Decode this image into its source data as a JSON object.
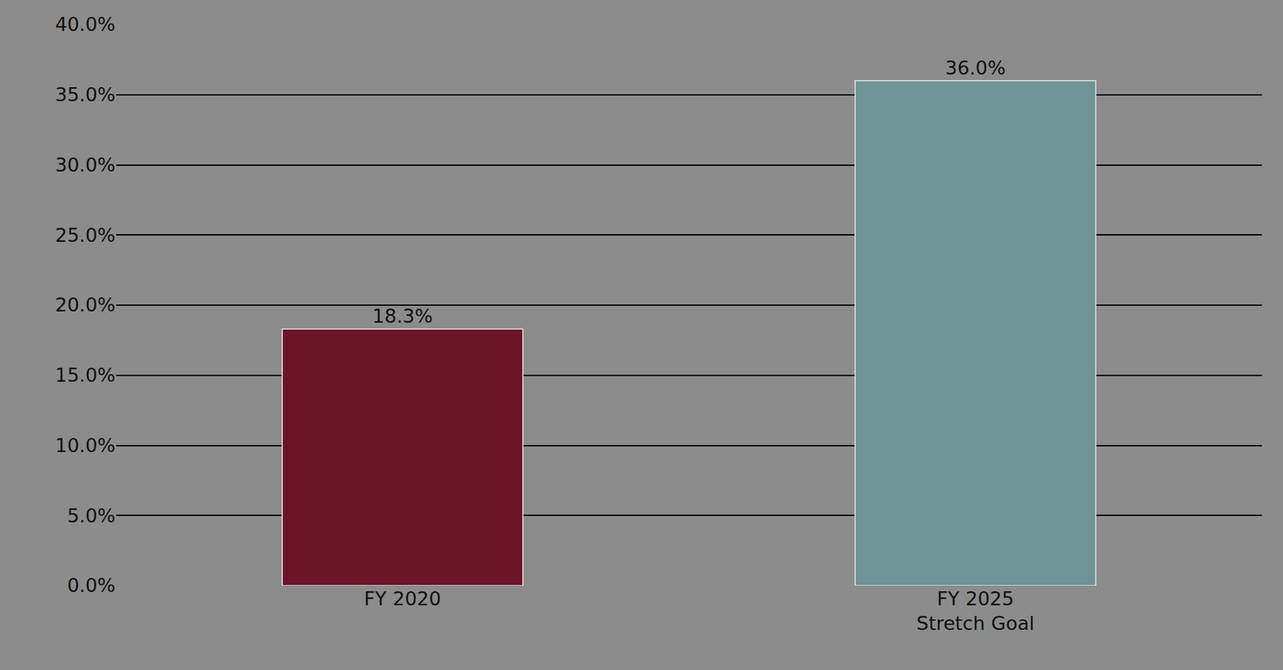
{
  "chart_data": {
    "type": "bar",
    "categories": [
      "FY 2020",
      "FY 2025 Stretch Goal"
    ],
    "values": [
      18.3,
      36.0
    ],
    "value_labels": [
      "18.3%",
      "36.0%"
    ],
    "colors": [
      "#6b1428",
      "#6f9396"
    ],
    "data_labels": true,
    "ylim": [
      0,
      40
    ],
    "yticks": [
      {
        "value": 0,
        "label": "0.0%"
      },
      {
        "value": 5,
        "label": "5.0%"
      },
      {
        "value": 10,
        "label": "10.0%"
      },
      {
        "value": 15,
        "label": "15.0%"
      },
      {
        "value": 20,
        "label": "20.0%"
      },
      {
        "value": 25,
        "label": "25.0%"
      },
      {
        "value": 30,
        "label": "30.0%"
      },
      {
        "value": 35,
        "label": "35.0%"
      },
      {
        "value": 40,
        "label": "40.0%"
      }
    ],
    "grid": true
  }
}
